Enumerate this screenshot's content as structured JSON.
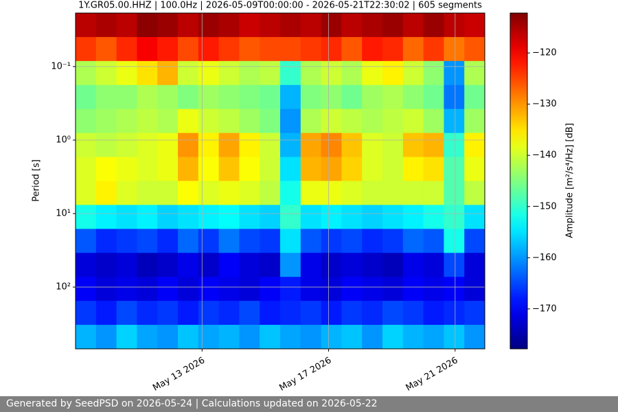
{
  "chart_data": {
    "type": "heatmap",
    "title": "1Y.GR05.00.HHZ | 100.0Hz | 2026-05-09T00:00:00 - 2026-05-21T22:30:02 | 605 segments",
    "ylabel": "Period [s]",
    "xlim": [
      "2026-05-09T00:00:00",
      "2026-05-21T22:30:02"
    ],
    "xticks": [
      {
        "value": "2026-05-13T00:00:00",
        "label": "May 13 2026"
      },
      {
        "value": "2026-05-17T00:00:00",
        "label": "May 17 2026"
      },
      {
        "value": "2026-05-21T00:00:00",
        "label": "May 21 2026"
      }
    ],
    "ylim": [
      0.0187,
      692
    ],
    "yticks": [
      {
        "value": 0.1,
        "label": "10⁻¹"
      },
      {
        "value": 1,
        "label": "10⁰"
      },
      {
        "value": 10,
        "label": "10¹"
      },
      {
        "value": 100,
        "label": "10²"
      }
    ],
    "log_y": true,
    "y_inverted": true,
    "grid": true,
    "colormap": "jet",
    "clim": [
      -177.8,
      -112.2
    ],
    "colorbar_label": "Amplitude [m²/s⁴/Hz] [dB]",
    "colorbar_ticks": [
      {
        "value": -170,
        "label": "−170"
      },
      {
        "value": -160,
        "label": "−160"
      },
      {
        "value": -150,
        "label": "−150"
      },
      {
        "value": -140,
        "label": "−140"
      },
      {
        "value": -130,
        "label": "−130"
      },
      {
        "value": -120,
        "label": "−120"
      }
    ],
    "z": [
      [
        -116,
        -115,
        -116,
        -113,
        -114,
        -116,
        -114,
        -115,
        -117,
        -116,
        -115,
        -116,
        -114,
        -116,
        -115,
        -114,
        -116,
        -114,
        -116,
        -117
      ],
      [
        -124,
        -126,
        -123,
        -120,
        -122,
        -125,
        -122,
        -124,
        -126,
        -125,
        -125,
        -124,
        -123,
        -126,
        -122,
        -123,
        -127,
        -124,
        -128,
        -126
      ],
      [
        -142,
        -140,
        -138,
        -135,
        -132,
        -140,
        -138,
        -140,
        -142,
        -141,
        -150,
        -142,
        -140,
        -142,
        -138,
        -136,
        -140,
        -144,
        -160,
        -142
      ],
      [
        -146,
        -144,
        -144,
        -142,
        -143,
        -145,
        -143,
        -144,
        -145,
        -146,
        -158,
        -145,
        -144,
        -146,
        -143,
        -142,
        -144,
        -146,
        -162,
        -146
      ],
      [
        -144,
        -143,
        -142,
        -141,
        -142,
        -138,
        -140,
        -141,
        -143,
        -145,
        -160,
        -142,
        -140,
        -141,
        -142,
        -141,
        -140,
        -143,
        -158,
        -143
      ],
      [
        -140,
        -141,
        -140,
        -139,
        -138,
        -130,
        -136,
        -131,
        -136,
        -140,
        -158,
        -131,
        -129,
        -133,
        -139,
        -140,
        -133,
        -132,
        -150,
        -136
      ],
      [
        -139,
        -137,
        -138,
        -139,
        -138,
        -132,
        -137,
        -133,
        -137,
        -140,
        -155,
        -132,
        -131,
        -134,
        -139,
        -140,
        -136,
        -135,
        -148,
        -138
      ],
      [
        -139,
        -136,
        -139,
        -140,
        -140,
        -137,
        -139,
        -138,
        -139,
        -141,
        -152,
        -138,
        -138,
        -139,
        -140,
        -140,
        -140,
        -140,
        -148,
        -141
      ],
      [
        -152,
        -154,
        -155,
        -154,
        -156,
        -155,
        -154,
        -153,
        -155,
        -156,
        -150,
        -155,
        -154,
        -155,
        -156,
        -155,
        -154,
        -152,
        -150,
        -155
      ],
      [
        -164,
        -167,
        -166,
        -165,
        -167,
        -163,
        -166,
        -162,
        -165,
        -166,
        -155,
        -164,
        -166,
        -165,
        -167,
        -166,
        -163,
        -164,
        -152,
        -165
      ],
      [
        -172,
        -173,
        -172,
        -174,
        -173,
        -171,
        -173,
        -170,
        -172,
        -173,
        -160,
        -171,
        -173,
        -172,
        -173,
        -174,
        -171,
        -172,
        -165,
        -172
      ],
      [
        -170,
        -172,
        -171,
        -172,
        -170,
        -172,
        -170,
        -171,
        -172,
        -170,
        -168,
        -171,
        -172,
        -170,
        -171,
        -172,
        -170,
        -171,
        -170,
        -172
      ],
      [
        -166,
        -168,
        -165,
        -167,
        -166,
        -168,
        -166,
        -167,
        -165,
        -168,
        -167,
        -166,
        -168,
        -166,
        -167,
        -165,
        -166,
        -168,
        -167,
        -166
      ],
      [
        -158,
        -160,
        -156,
        -159,
        -160,
        -157,
        -159,
        -158,
        -160,
        -157,
        -159,
        -160,
        -158,
        -157,
        -160,
        -156,
        -158,
        -159,
        -157,
        -160
      ]
    ]
  },
  "footer": {
    "text": "Generated by SeedPSD on 2026-05-24 | Calculations updated on 2026-05-22"
  }
}
